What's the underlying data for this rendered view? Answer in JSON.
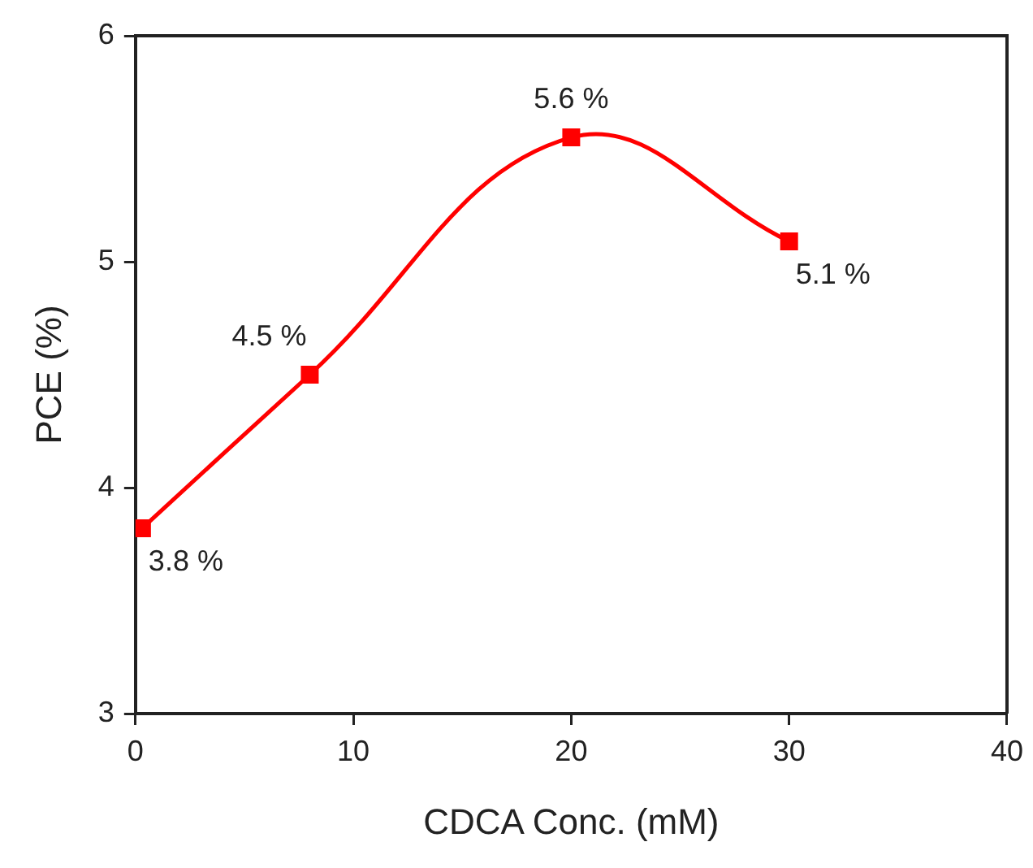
{
  "chart_data": {
    "type": "line",
    "xlabel": "CDCA Conc. (mM)",
    "ylabel": "PCE (%)",
    "x": [
      0.3,
      8,
      20,
      30
    ],
    "series": [
      {
        "color": "#ff0000",
        "values": [
          3.82,
          4.5,
          5.55,
          5.09
        ],
        "value_labels": [
          "3.8 %",
          "4.5 %",
          "5.6 %",
          "5.1 %"
        ]
      }
    ],
    "xlim": [
      0,
      40
    ],
    "xticks": [
      0,
      10,
      20,
      30,
      40
    ],
    "ylim": [
      3,
      6
    ],
    "yticks": [
      3,
      4,
      5,
      6
    ],
    "grid": false,
    "legend": false,
    "marker": "square",
    "line_style": "solid"
  }
}
